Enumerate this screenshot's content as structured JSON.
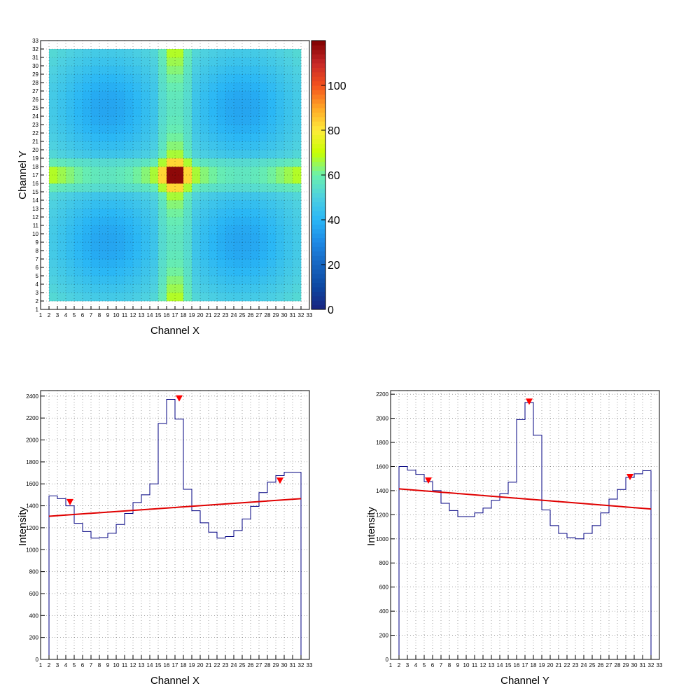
{
  "chart_data": [
    {
      "type": "heatmap",
      "xlabel": "Channel X",
      "ylabel": "Channel Y",
      "x_tick_labels": [
        "1",
        "2",
        "3",
        "4",
        "5",
        "6",
        "7",
        "8",
        "9",
        "10",
        "11",
        "12",
        "13",
        "14",
        "15",
        "16",
        "17",
        "18",
        "19",
        "20",
        "21",
        "22",
        "23",
        "24",
        "25",
        "26",
        "27",
        "28",
        "29",
        "30",
        "31",
        "32",
        "33"
      ],
      "y_tick_labels": [
        "1",
        "2",
        "3",
        "4",
        "5",
        "6",
        "7",
        "8",
        "9",
        "10",
        "11",
        "12",
        "13",
        "14",
        "15",
        "16",
        "17",
        "18",
        "19",
        "20",
        "21",
        "22",
        "23",
        "24",
        "25",
        "26",
        "27",
        "28",
        "29",
        "30",
        "31",
        "32",
        "33"
      ],
      "xlim": [
        1,
        33
      ],
      "ylim": [
        1,
        33
      ],
      "filled_range": [
        2,
        32
      ],
      "zlim": [
        0,
        120
      ],
      "colorbar_ticks": [
        "0",
        "20",
        "40",
        "60",
        "80",
        "100"
      ],
      "colormap": [
        "#1a237e",
        "#0d47a1",
        "#1565c0",
        "#1e88e5",
        "#29b6f6",
        "#4dd0e1",
        "#69f0ae",
        "#c6ff00",
        "#ffeb3b",
        "#ffa726",
        "#f4511e",
        "#c62828",
        "#7f0000"
      ],
      "grid": true,
      "description_values": {
        "background_level": 50,
        "band_center_x": 17,
        "band_center_y": 17,
        "peak": 118
      }
    },
    {
      "type": "histogram",
      "xlabel": "Channel X",
      "ylabel": "Intensity",
      "x_tick_labels": [
        "1",
        "2",
        "3",
        "4",
        "5",
        "6",
        "7",
        "8",
        "9",
        "10",
        "11",
        "12",
        "13",
        "14",
        "15",
        "16",
        "17",
        "18",
        "19",
        "20",
        "21",
        "22",
        "23",
        "24",
        "25",
        "26",
        "27",
        "28",
        "29",
        "30",
        "31",
        "32",
        "33"
      ],
      "y_tick_labels": [
        "0",
        "200",
        "400",
        "600",
        "800",
        "1000",
        "1200",
        "1400",
        "1600",
        "1800",
        "2000",
        "2200",
        "2400"
      ],
      "xlim": [
        1,
        33
      ],
      "ylim": [
        0,
        2450
      ],
      "bin_edges_start": 2,
      "bin_edges_end": 32,
      "values": [
        1490,
        1465,
        1400,
        1240,
        1165,
        1105,
        1110,
        1150,
        1230,
        1330,
        1430,
        1500,
        1600,
        2150,
        2370,
        2190,
        1550,
        1355,
        1245,
        1160,
        1105,
        1120,
        1175,
        1280,
        1395,
        1520,
        1615,
        1675,
        1705,
        1705
      ],
      "fit_line": {
        "x": [
          2,
          32
        ],
        "y": [
          1305,
          1465
        ]
      },
      "peak_markers": [
        {
          "x": 4.5,
          "y": 1430
        },
        {
          "x": 17.5,
          "y": 2375
        },
        {
          "x": 29.5,
          "y": 1625
        }
      ],
      "line_color": "#000080",
      "fit_color": "#e00000",
      "marker_color": "#ff0000",
      "grid": true
    },
    {
      "type": "histogram",
      "xlabel": "Channel Y",
      "ylabel": "Intensity",
      "x_tick_labels": [
        "1",
        "2",
        "3",
        "4",
        "5",
        "6",
        "7",
        "8",
        "9",
        "10",
        "11",
        "12",
        "13",
        "14",
        "15",
        "16",
        "17",
        "18",
        "19",
        "20",
        "21",
        "22",
        "23",
        "24",
        "25",
        "26",
        "27",
        "28",
        "29",
        "30",
        "31",
        "32",
        "33"
      ],
      "y_tick_labels": [
        "0",
        "200",
        "400",
        "600",
        "800",
        "1000",
        "1200",
        "1400",
        "1600",
        "1800",
        "2000",
        "2200"
      ],
      "xlim": [
        1,
        33
      ],
      "ylim": [
        0,
        2230
      ],
      "bin_edges_start": 2,
      "bin_edges_end": 32,
      "values": [
        1600,
        1570,
        1535,
        1475,
        1400,
        1295,
        1235,
        1185,
        1185,
        1215,
        1255,
        1320,
        1375,
        1470,
        1990,
        2130,
        1860,
        1240,
        1110,
        1045,
        1010,
        1000,
        1045,
        1110,
        1215,
        1330,
        1410,
        1510,
        1540,
        1565
      ],
      "fit_line": {
        "x": [
          2,
          32
        ],
        "y": [
          1415,
          1248
        ]
      },
      "peak_markers": [
        {
          "x": 5.5,
          "y": 1480
        },
        {
          "x": 17.5,
          "y": 2135
        },
        {
          "x": 29.5,
          "y": 1510
        }
      ],
      "line_color": "#000080",
      "fit_color": "#e00000",
      "marker_color": "#ff0000",
      "grid": true
    }
  ]
}
